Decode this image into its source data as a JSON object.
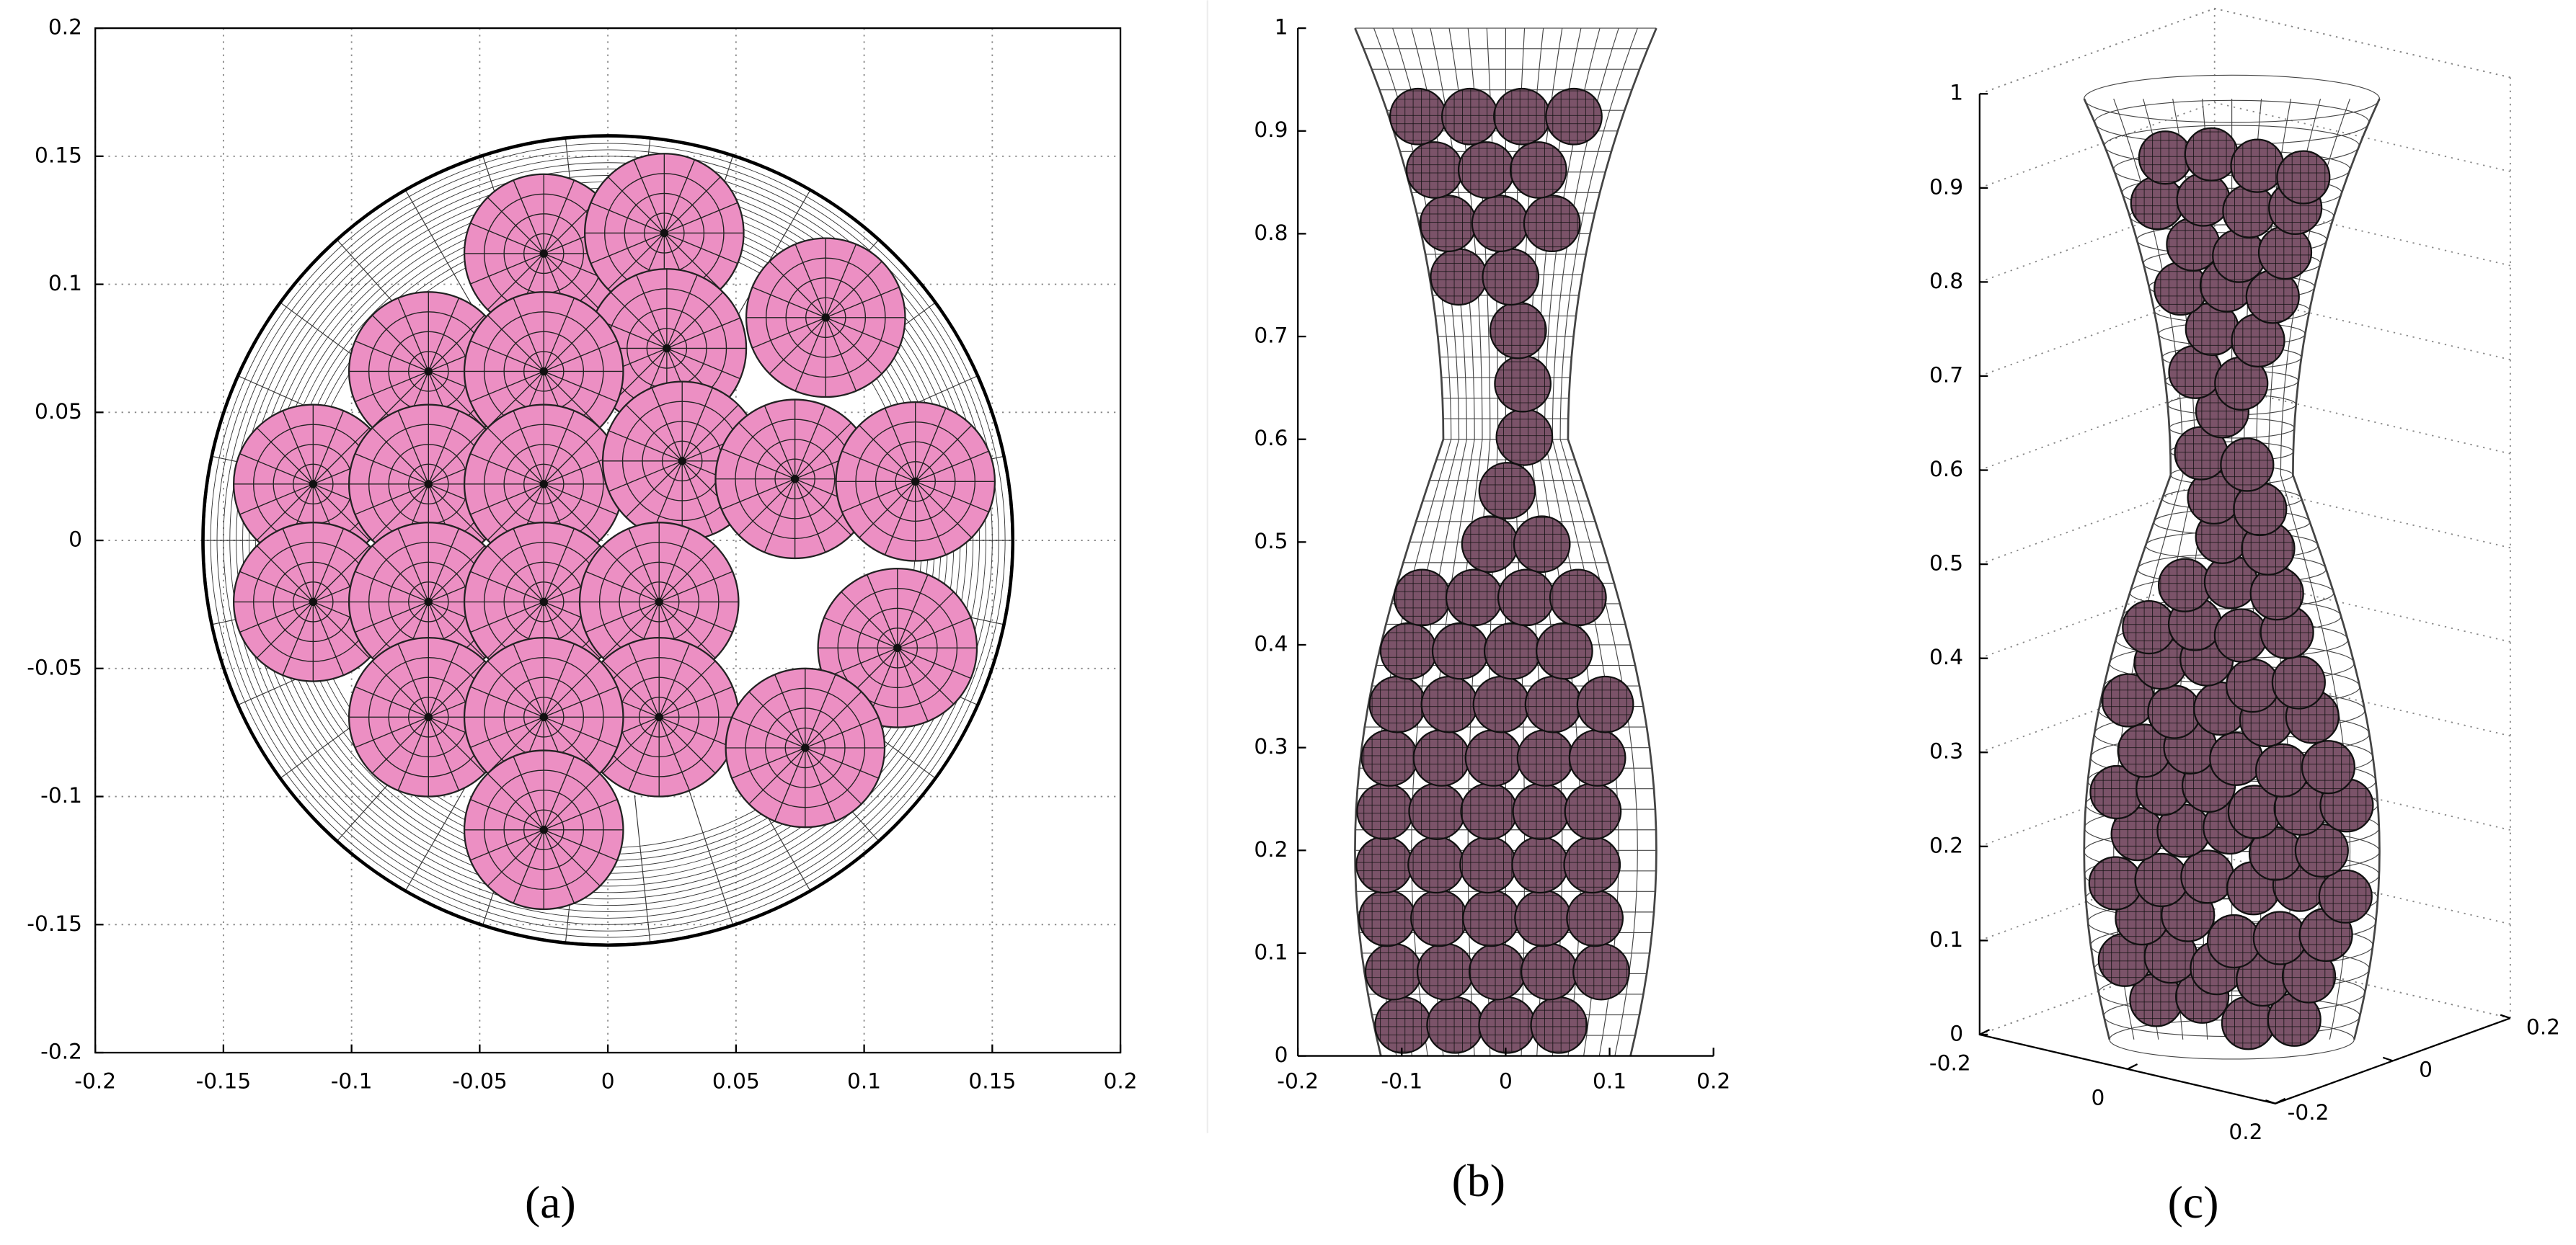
{
  "chart_data": [
    {
      "type": "sphere-top-view",
      "label": "(a)",
      "xlim": [
        -0.2,
        0.2
      ],
      "ylim": [
        -0.2,
        0.2
      ],
      "xticks": [
        -0.2,
        -0.15,
        -0.1,
        -0.05,
        0,
        0.05,
        0.1,
        0.15,
        0.2
      ],
      "yticks": [
        -0.2,
        -0.15,
        -0.1,
        -0.05,
        0,
        0.05,
        0.1,
        0.15,
        0.2
      ],
      "grid": true,
      "color": "#ec8fc3",
      "radius": 0.031,
      "x": [
        -0.025,
        0.022,
        0.085,
        0.023,
        -0.07,
        -0.025,
        -0.115,
        -0.07,
        -0.025,
        0.029,
        0.073,
        0.12,
        -0.115,
        -0.07,
        -0.025,
        0.02,
        0.113,
        -0.07,
        0.02,
        -0.025,
        0.077,
        -0.025
      ],
      "y": [
        0.112,
        0.12,
        0.087,
        0.075,
        0.066,
        0.066,
        0.022,
        0.022,
        0.022,
        0.031,
        0.024,
        0.023,
        -0.024,
        -0.024,
        -0.024,
        -0.024,
        -0.042,
        -0.069,
        -0.069,
        -0.069,
        -0.081,
        -0.113
      ]
    },
    {
      "type": "sphere-side-view",
      "label": "(b)",
      "xlim": [
        -0.2,
        0.2
      ],
      "ylim": [
        0,
        1
      ],
      "xticks": [
        -0.2,
        -0.1,
        0,
        0.1,
        0.2
      ],
      "yticks": [
        0,
        0.1,
        0.2,
        0.3,
        0.4,
        0.5,
        0.6,
        0.7,
        0.8,
        0.9,
        1
      ],
      "color": "#7b5369"
    },
    {
      "type": "sphere-3d-view",
      "label": "(c)",
      "xlim": [
        -0.2,
        0.2
      ],
      "ylim": [
        -0.2,
        0.2
      ],
      "zlim": [
        0,
        1
      ],
      "xticks": [
        -0.2,
        0,
        0.2
      ],
      "yticks": [
        -0.2,
        0,
        0.2
      ],
      "zticks": [
        0,
        0.1,
        0.2,
        0.3,
        0.4,
        0.5,
        0.6,
        0.7,
        0.8,
        0.9,
        1
      ],
      "color": "#7b5369"
    }
  ]
}
